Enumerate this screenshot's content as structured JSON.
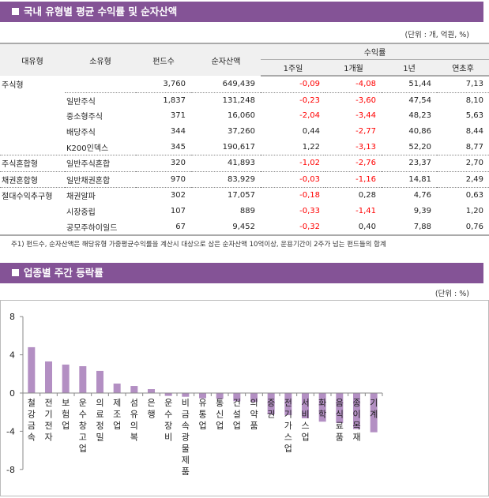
{
  "section1": {
    "title": "국내 유형별 평균 수익률 및 순자산액",
    "unit": "(단위 : 개, 억원, %)",
    "headers": {
      "major": "대유형",
      "minor": "소유형",
      "funds": "펀드수",
      "nav": "순자산액",
      "returns": "수익률",
      "w1": "1주일",
      "m1": "1개월",
      "y1": "1년",
      "ytd": "연초후"
    },
    "rows": [
      [
        "주식형",
        "",
        "3,760",
        "649,439",
        "-0,09",
        "-4,08",
        "51,44",
        "7,13"
      ],
      [
        "",
        "일반주식",
        "1,837",
        "131,248",
        "-0,23",
        "-3,60",
        "47,54",
        "8,10"
      ],
      [
        "",
        "중소형주식",
        "371",
        "16,060",
        "-2,04",
        "-3,44",
        "48,23",
        "5,63"
      ],
      [
        "",
        "배당주식",
        "344",
        "37,260",
        "0,44",
        "-2,77",
        "40,86",
        "8,44"
      ],
      [
        "",
        "K200인덱스",
        "345",
        "190,617",
        "1,22",
        "-3,13",
        "52,20",
        "8,77"
      ],
      [
        "주식혼합형",
        "일반주식혼합",
        "320",
        "41,893",
        "-1,02",
        "-2,76",
        "23,37",
        "2,70"
      ],
      [
        "채권혼합형",
        "일반채권혼합",
        "970",
        "83,929",
        "-0,03",
        "-1,16",
        "14,81",
        "2,49"
      ],
      [
        "절대수익추구형",
        "채권알파",
        "302",
        "17,057",
        "-0,18",
        "0,28",
        "4,76",
        "0,63"
      ],
      [
        "",
        "시장중립",
        "107",
        "889",
        "-0,33",
        "-1,41",
        "9,39",
        "1,20"
      ],
      [
        "",
        "공모주하이일드",
        "67",
        "9,452",
        "-0,32",
        "0,40",
        "7,88",
        "0,76"
      ]
    ],
    "note": "주1) 펀드수, 순자산액은 해당유형 가중평균수익률을 계산시 대상으로 삼은 순자산액 10억이상, 운용기간이 2주가 넘는 펀드들의 합계"
  },
  "section2": {
    "title": "업종별 주간 등락률",
    "unit": "(단위 : %)"
  },
  "chart_data": {
    "type": "bar",
    "ylim": [
      -8,
      8
    ],
    "yticks": [
      8,
      4,
      0,
      -4,
      -8
    ],
    "grid": false,
    "color": "#b38fc3",
    "categories": [
      "철강금속",
      "전기전자",
      "보험업",
      "운수창고업",
      "의료정밀",
      "제조업",
      "섬유의복",
      "은행",
      "운수장비",
      "비금속광물제품",
      "유통업",
      "통신업",
      "건설업",
      "의약품",
      "증권",
      "전기가스업",
      "서비스업",
      "화학",
      "음식료품",
      "종이목재",
      "기계"
    ],
    "values": [
      4.8,
      3.31,
      2.98,
      2.81,
      2.32,
      0.99,
      0.74,
      0.41,
      -0.3,
      -0.39,
      -0.55,
      -0.6,
      -0.86,
      -0.94,
      -2.23,
      -2.32,
      -2.65,
      -3.0,
      -3.14,
      -3.78,
      -4.11
    ]
  }
}
